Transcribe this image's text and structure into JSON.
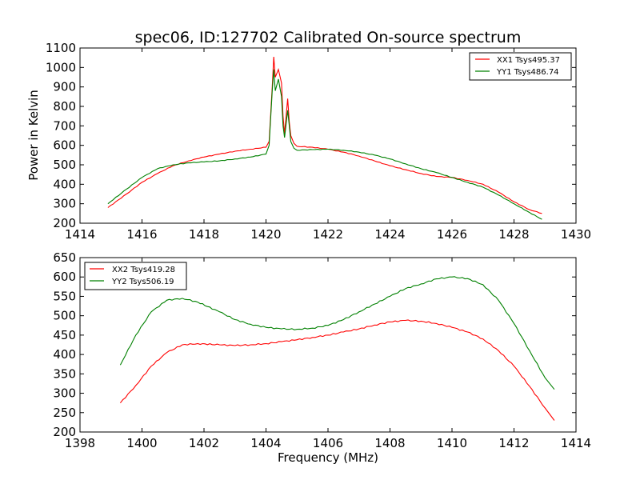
{
  "chart_data": [
    {
      "type": "line",
      "title": "spec06, ID:127702 Calibrated On-source spectrum",
      "xlabel": "",
      "ylabel": "Power in Kelvin",
      "xlim": [
        1414,
        1430
      ],
      "ylim": [
        200,
        1100
      ],
      "xticks": [
        "1414",
        "1416",
        "1418",
        "1420",
        "1422",
        "1424",
        "1426",
        "1428",
        "1430"
      ],
      "yticks": [
        "200",
        "300",
        "400",
        "500",
        "600",
        "700",
        "800",
        "900",
        "1000",
        "1100"
      ],
      "legend_position": "top-right",
      "series": [
        {
          "name": "XX1 Tsys495.37",
          "color": "#ff0000",
          "x": [
            1414.9,
            1415.5,
            1416.0,
            1416.5,
            1417.0,
            1417.5,
            1418.0,
            1418.5,
            1419.0,
            1419.5,
            1420.0,
            1420.1,
            1420.2,
            1420.25,
            1420.3,
            1420.4,
            1420.5,
            1420.55,
            1420.6,
            1420.7,
            1420.75,
            1420.8,
            1420.9,
            1421.0,
            1421.5,
            1422.0,
            1422.5,
            1423.0,
            1423.5,
            1424.0,
            1424.5,
            1425.0,
            1425.5,
            1426.0,
            1426.5,
            1427.0,
            1427.5,
            1428.0,
            1428.5,
            1428.9
          ],
          "y": [
            280,
            350,
            410,
            455,
            495,
            520,
            540,
            555,
            570,
            580,
            590,
            620,
            900,
            1055,
            950,
            990,
            920,
            750,
            660,
            840,
            720,
            650,
            610,
            595,
            590,
            580,
            565,
            545,
            520,
            495,
            475,
            455,
            440,
            435,
            420,
            400,
            360,
            310,
            270,
            250
          ]
        },
        {
          "name": "YY1 Tsys486.74",
          "color": "#008000",
          "x": [
            1414.9,
            1415.5,
            1416.0,
            1416.5,
            1417.0,
            1417.5,
            1418.0,
            1418.5,
            1419.0,
            1419.5,
            1420.0,
            1420.1,
            1420.2,
            1420.25,
            1420.3,
            1420.4,
            1420.5,
            1420.55,
            1420.6,
            1420.7,
            1420.75,
            1420.8,
            1420.9,
            1421.0,
            1421.5,
            1422.0,
            1422.5,
            1423.0,
            1423.5,
            1424.0,
            1424.5,
            1425.0,
            1425.5,
            1426.0,
            1426.5,
            1427.0,
            1427.5,
            1428.0,
            1428.5,
            1428.9
          ],
          "y": [
            300,
            375,
            435,
            480,
            500,
            510,
            515,
            520,
            530,
            540,
            555,
            600,
            880,
            990,
            880,
            940,
            850,
            700,
            640,
            780,
            700,
            620,
            585,
            575,
            578,
            580,
            575,
            565,
            550,
            530,
            505,
            480,
            460,
            435,
            410,
            385,
            345,
            300,
            255,
            220
          ]
        }
      ]
    },
    {
      "type": "line",
      "title": "",
      "xlabel": "Frequency (MHz)",
      "ylabel": "",
      "xlim": [
        1398,
        1414
      ],
      "ylim": [
        200,
        650
      ],
      "xticks": [
        "1398",
        "1400",
        "1402",
        "1404",
        "1406",
        "1408",
        "1410",
        "1412",
        "1414"
      ],
      "yticks": [
        "200",
        "250",
        "300",
        "350",
        "400",
        "450",
        "500",
        "550",
        "600",
        "650"
      ],
      "legend_position": "top-left",
      "series": [
        {
          "name": "XX2 Tsys419.28",
          "color": "#ff0000",
          "x": [
            1399.3,
            1399.8,
            1400.3,
            1400.8,
            1401.3,
            1401.8,
            1402.5,
            1403.0,
            1403.5,
            1404.0,
            1404.5,
            1405.0,
            1405.5,
            1406.0,
            1406.5,
            1407.0,
            1407.5,
            1408.0,
            1408.5,
            1409.0,
            1409.5,
            1410.0,
            1410.5,
            1411.0,
            1411.5,
            1412.0,
            1412.5,
            1413.0,
            1413.3
          ],
          "y": [
            275,
            320,
            370,
            405,
            425,
            428,
            425,
            423,
            425,
            428,
            433,
            438,
            444,
            450,
            458,
            466,
            476,
            484,
            488,
            486,
            480,
            470,
            458,
            440,
            410,
            370,
            318,
            262,
            230
          ]
        },
        {
          "name": "YY2 Tsys506.19",
          "color": "#008000",
          "x": [
            1399.3,
            1399.8,
            1400.3,
            1400.8,
            1401.3,
            1401.8,
            1402.5,
            1403.0,
            1403.5,
            1404.0,
            1404.5,
            1405.0,
            1405.5,
            1406.0,
            1406.5,
            1407.0,
            1407.5,
            1408.0,
            1408.5,
            1409.0,
            1409.5,
            1410.0,
            1410.5,
            1411.0,
            1411.5,
            1412.0,
            1412.5,
            1413.0,
            1413.3
          ],
          "y": [
            373,
            450,
            510,
            540,
            545,
            535,
            510,
            490,
            478,
            470,
            466,
            465,
            468,
            475,
            490,
            510,
            530,
            550,
            570,
            582,
            595,
            600,
            596,
            580,
            540,
            480,
            410,
            340,
            310
          ]
        }
      ]
    }
  ]
}
